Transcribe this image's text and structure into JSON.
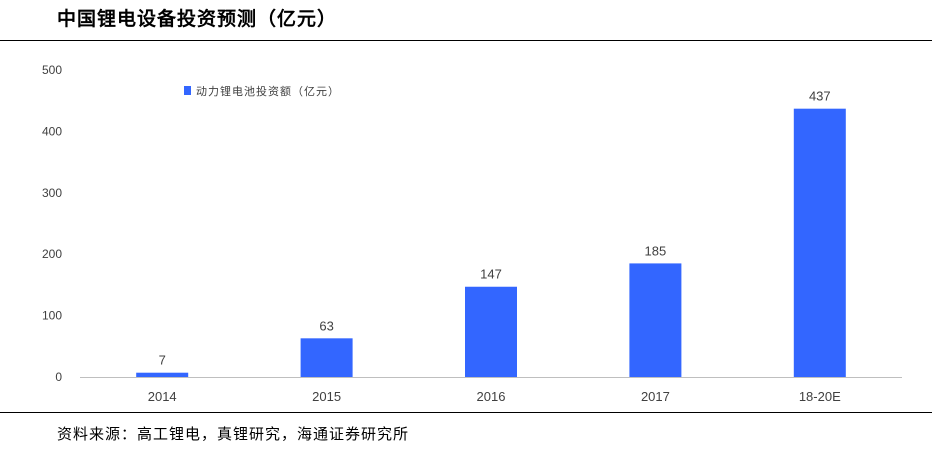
{
  "header": {
    "title": "中国锂电设备投资预测（亿元）"
  },
  "footer": {
    "source": "资料来源：高工锂电，真锂研究，海通证券研究所"
  },
  "colors": {
    "bar": "#3366ff",
    "axis": "#bfbfbf",
    "text": "#404040"
  },
  "chart_data": {
    "type": "bar",
    "categories": [
      "2014",
      "2015",
      "2016",
      "2017",
      "18-20E"
    ],
    "series": [
      {
        "name": "动力锂电池投资额（亿元）",
        "values": [
          7,
          63,
          147,
          185,
          437
        ]
      }
    ],
    "ylim": [
      0,
      500
    ],
    "yticks": [
      0,
      100,
      200,
      300,
      400,
      500
    ],
    "grid": false,
    "legend": "top-left",
    "data_labels": true
  }
}
